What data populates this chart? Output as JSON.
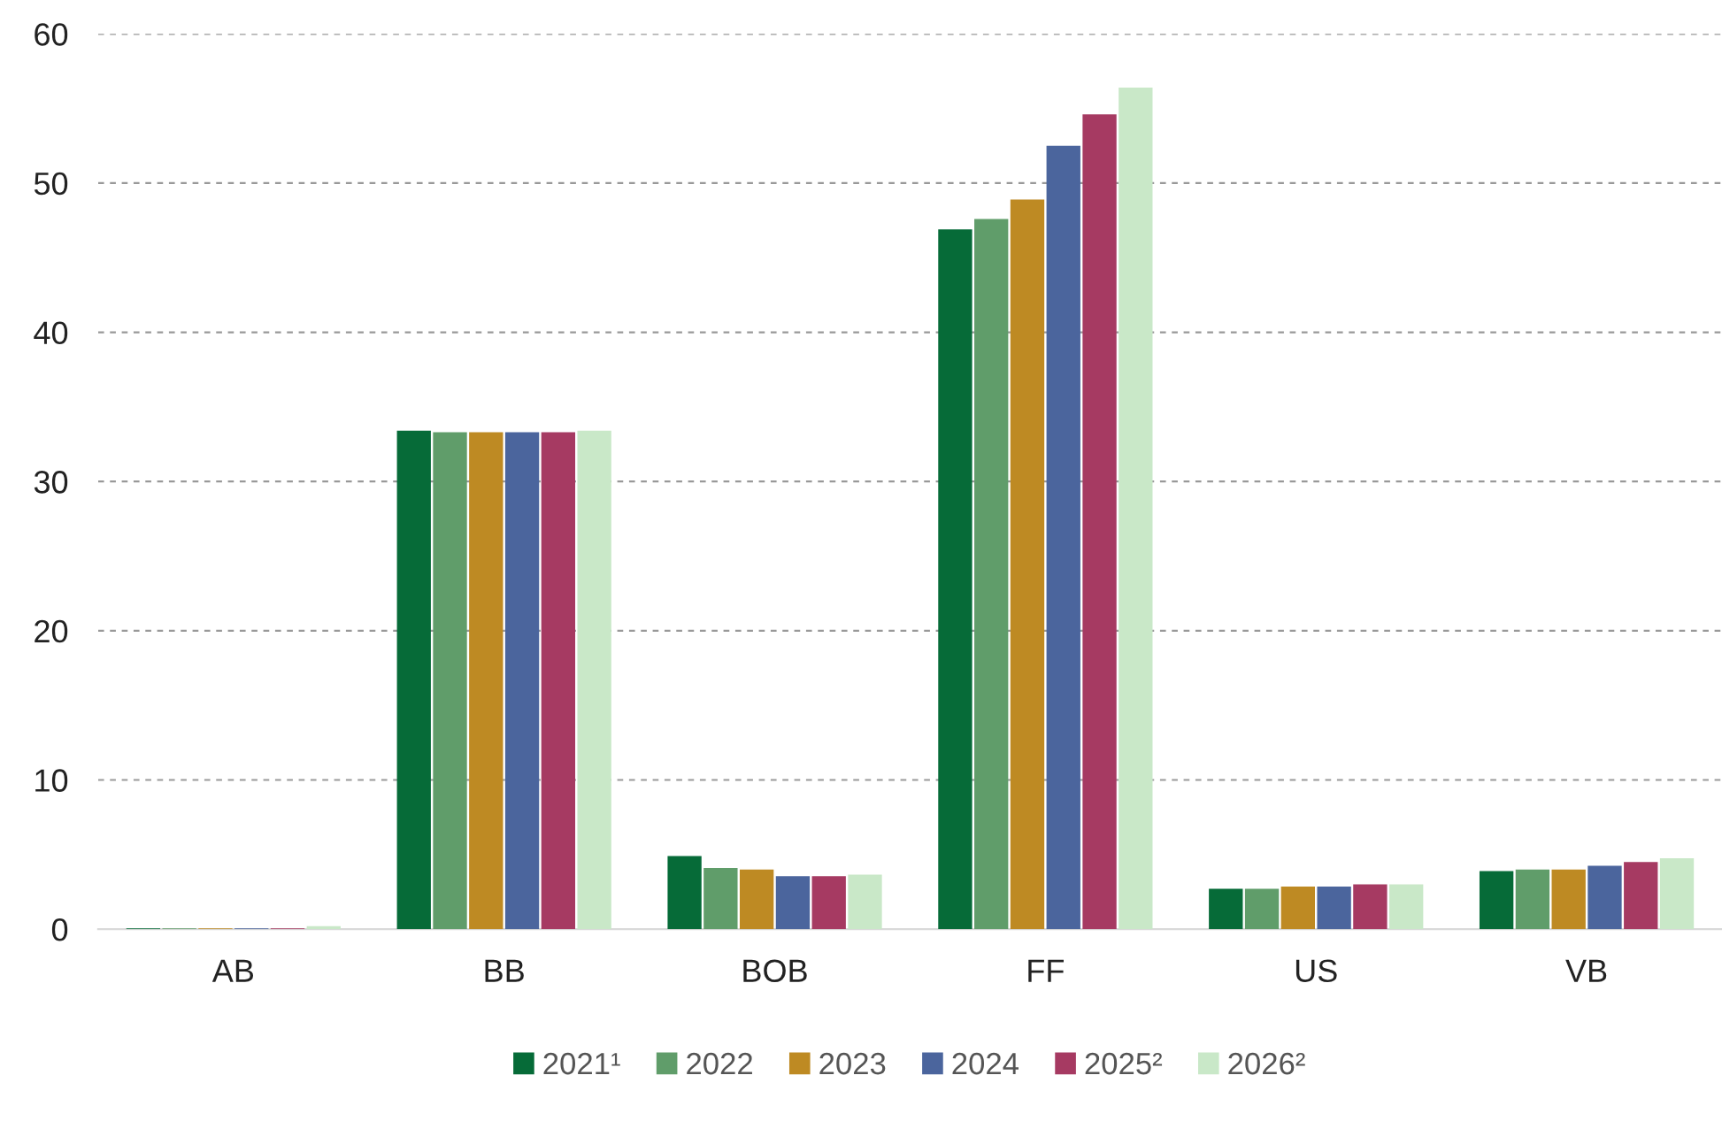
{
  "chart_data": {
    "type": "bar",
    "categories": [
      "AB",
      "BB",
      "BOB",
      "FF",
      "US",
      "VB"
    ],
    "series": [
      {
        "name": "2021¹",
        "color": "#066b38",
        "values": [
          0.05,
          33.4,
          4.9,
          46.9,
          2.7,
          3.9
        ]
      },
      {
        "name": "2022",
        "color": "#609d6a",
        "values": [
          0.05,
          33.3,
          4.1,
          47.6,
          2.7,
          4.0
        ]
      },
      {
        "name": "2023",
        "color": "#be8a23",
        "values": [
          0.05,
          33.3,
          4.0,
          48.9,
          2.85,
          4.0
        ]
      },
      {
        "name": "2024",
        "color": "#4b659d",
        "values": [
          0.05,
          33.3,
          3.55,
          52.5,
          2.85,
          4.25
        ]
      },
      {
        "name": "2025²",
        "color": "#a63a62",
        "values": [
          0.05,
          33.3,
          3.55,
          54.6,
          3.0,
          4.5
        ]
      },
      {
        "name": "2026²",
        "color": "#c9e8c8",
        "values": [
          0.2,
          33.4,
          3.65,
          56.4,
          3.0,
          4.75
        ]
      }
    ],
    "ylim": [
      0,
      60
    ],
    "yticks": [
      0,
      10,
      20,
      30,
      40,
      50,
      60
    ],
    "grid": "y",
    "legend": "bottom"
  }
}
